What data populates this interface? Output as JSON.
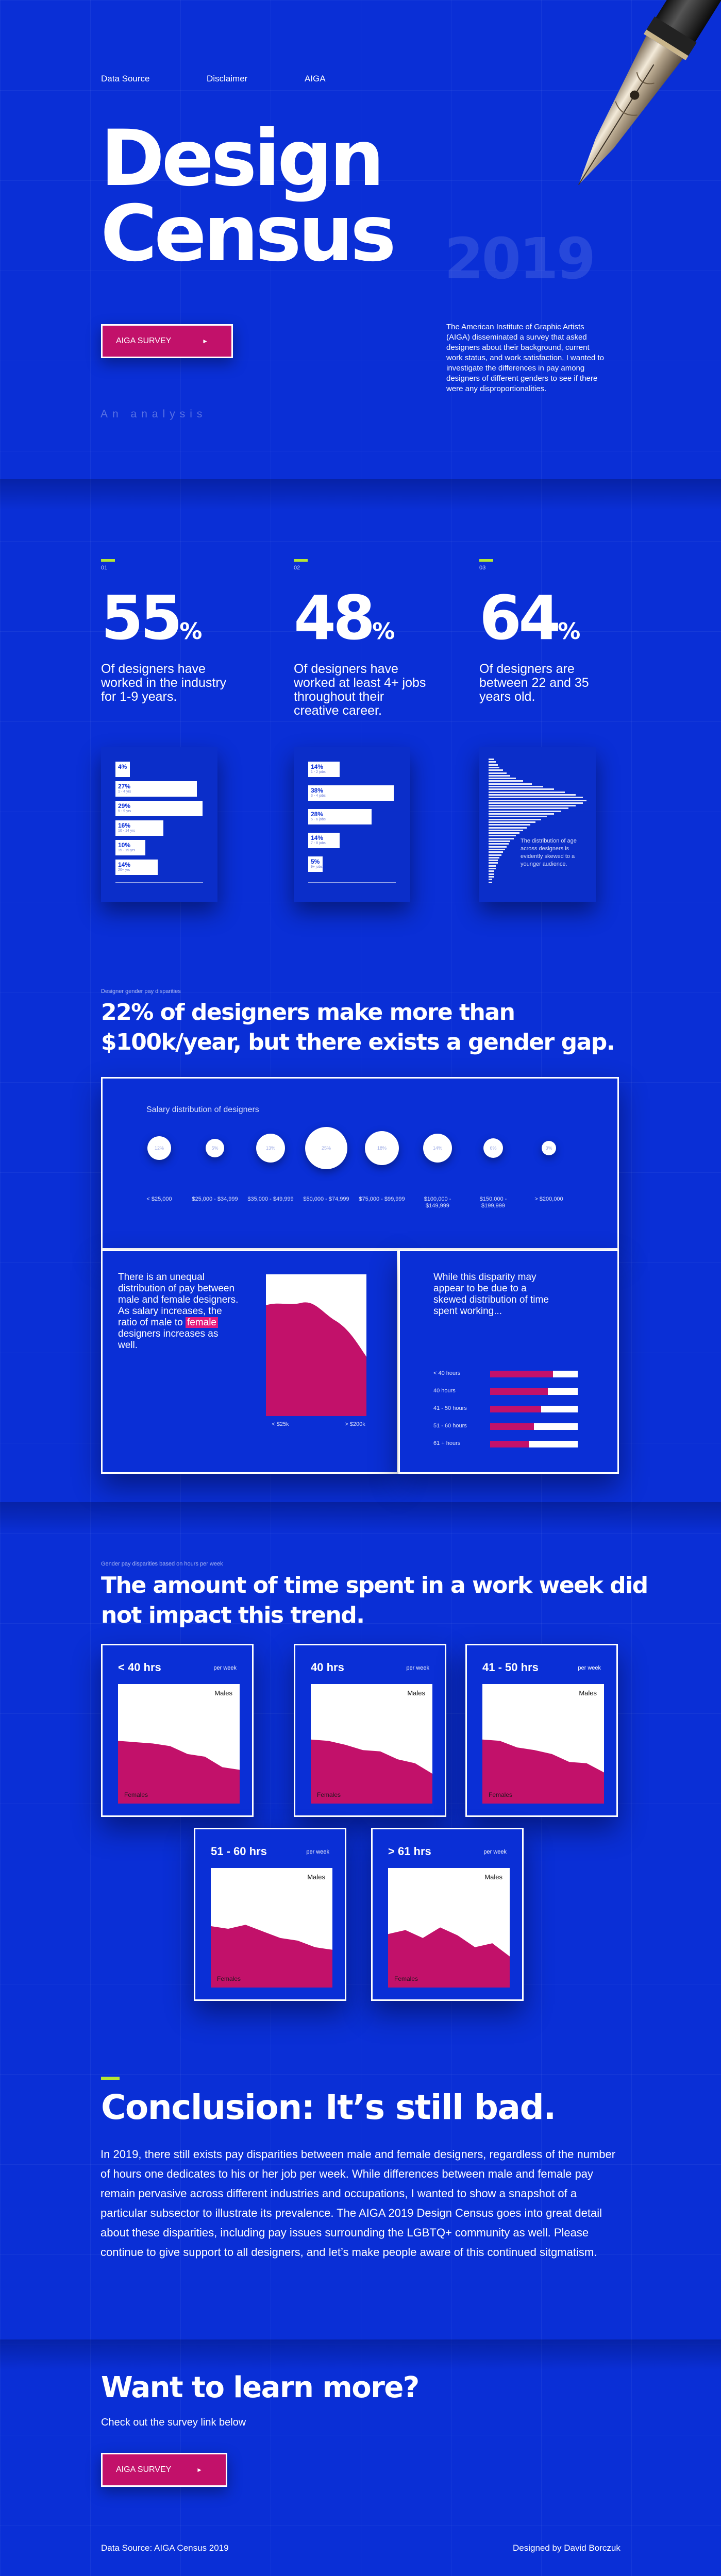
{
  "nav": {
    "items": [
      "Data Source",
      "Disclaimer",
      "AIGA"
    ]
  },
  "hero": {
    "title_line1": "Design",
    "title_line2": "Census",
    "year": "2019",
    "button_label": "AIGA SURVEY",
    "button_arrow": "►",
    "description": "The American Institute of Graphic Artists (AIGA) disseminated a survey that asked designers about their background, current work status, and work satisfaction. I wanted to investigate the differences in pay among designers of different genders to see if there were any disproportionalities.",
    "tagline": "An analysis"
  },
  "stats": [
    {
      "num": "01",
      "value": "55",
      "unit": "%",
      "desc": "Of designers have worked in the industry for 1-9 years.",
      "bars": [
        {
          "label": "4%",
          "sub": "",
          "value": 4
        },
        {
          "label": "27%",
          "sub": "1 - 4 yrs",
          "value": 27
        },
        {
          "label": "29%",
          "sub": "5 - 9 yrs",
          "value": 29
        },
        {
          "label": "16%",
          "sub": "10 - 14 yrs",
          "value": 16
        },
        {
          "label": "10%",
          "sub": "15 - 19 yrs",
          "value": 10
        },
        {
          "label": "14%",
          "sub": "20+ yrs",
          "value": 14
        }
      ]
    },
    {
      "num": "02",
      "value": "48",
      "unit": "%",
      "desc": "Of designers have worked at least 4+ jobs throughout their creative career.",
      "bars": [
        {
          "label": "14%",
          "sub": "1 - 2 jobs",
          "value": 14
        },
        {
          "label": "38%",
          "sub": "3 - 4 jobs",
          "value": 38
        },
        {
          "label": "28%",
          "sub": "5 - 6 jobs",
          "value": 28
        },
        {
          "label": "14%",
          "sub": "7 - 8 jobs",
          "value": 14
        },
        {
          "label": "5%",
          "sub": "9+ jobs",
          "value": 5
        }
      ]
    },
    {
      "num": "03",
      "value": "64",
      "unit": "%",
      "desc": "Of designers are between 22 and 35 years old.",
      "dist_text": "The distribution of age across designers is evidently skewed to a younger audience.",
      "dist_values": [
        3,
        4,
        5,
        6,
        8,
        10,
        12,
        15,
        19,
        24,
        30,
        36,
        42,
        48,
        52,
        54,
        52,
        48,
        44,
        40,
        36,
        32,
        29,
        26,
        23,
        21,
        19,
        17,
        15,
        14,
        12,
        11,
        10,
        9,
        8,
        7,
        6,
        5,
        5,
        4,
        4,
        3,
        3,
        3,
        2,
        2
      ]
    }
  ],
  "salary_section": {
    "label": "Designer gender pay disparities",
    "title_line1": "22% of designers make more than",
    "title_line2": "$100k/year, but there exists a gender gap.",
    "panel_title": "Salary distribution of designers",
    "bubbles": [
      {
        "pct": "12%",
        "label": "< $25,000",
        "size": 46
      },
      {
        "pct": "5%",
        "label": "$25,000 - $34,999",
        "size": 36
      },
      {
        "pct": "13%",
        "label": "$35,000 - $49,999",
        "size": 56
      },
      {
        "pct": "25%",
        "label": "$50,000 - $74,999",
        "size": 82
      },
      {
        "pct": "18%",
        "label": "$75,000 - $99,999",
        "size": 66
      },
      {
        "pct": "14%",
        "label": "$100,000 - $149,999",
        "size": 56
      },
      {
        "pct": "6%",
        "label": "$150,000 - $199,999",
        "size": 38
      },
      {
        "pct": "3%",
        "label": "> $200,000",
        "size": 28
      }
    ],
    "left_text_pre": "There is an unequal distribution of pay between male and female designers. As salary increases, the ratio of male to ",
    "left_text_hl": "female",
    "left_text_post": " designers increases as well.",
    "left_axis_min": "< $25k",
    "left_axis_max": "> $200k",
    "right_text": "While this disparity may appear to be due to a skewed distribution of time spent working...",
    "hours_rows": [
      {
        "label": "< 40 hours",
        "female": 0.72
      },
      {
        "label": "40 hours",
        "female": 0.66
      },
      {
        "label": "41 - 50 hours",
        "female": 0.58
      },
      {
        "label": "51 - 60 hours",
        "female": 0.5
      },
      {
        "label": "61 + hours",
        "female": 0.44
      }
    ]
  },
  "hours_section": {
    "label": "Gender pay disparities based on hours per week",
    "title_line1": "The amount of time spent in a work week did",
    "title_line2": "not impact this trend.",
    "per_week": "per week",
    "males": "Males",
    "females": "Females",
    "cards": [
      {
        "title": "< 40 hrs",
        "female_share": [
          0.64,
          0.62,
          0.6,
          0.56,
          0.44,
          0.4,
          0.24,
          0.2
        ]
      },
      {
        "title": "40 hrs",
        "female_share": [
          0.66,
          0.64,
          0.58,
          0.5,
          0.48,
          0.36,
          0.3,
          0.14
        ]
      },
      {
        "title": "41 - 50 hrs",
        "female_share": [
          0.66,
          0.64,
          0.54,
          0.5,
          0.44,
          0.32,
          0.3,
          0.16
        ]
      },
      {
        "title": "51 - 60 hrs",
        "female_share": [
          0.62,
          0.58,
          0.64,
          0.54,
          0.44,
          0.4,
          0.3,
          0.26
        ]
      },
      {
        "title": "> 61 hrs",
        "female_share": [
          0.5,
          0.56,
          0.44,
          0.6,
          0.48,
          0.3,
          0.36,
          0.16
        ]
      }
    ]
  },
  "conclusion": {
    "title": "Conclusion: It’s still bad.",
    "text": "In 2019, there still exists pay disparities between male and female designers, regardless of the number of hours one dedicates to his or her job per week. While differences between male and female pay remain pervasive across different industries and occupations, I wanted to show a snapshot of a particular subsector to illustrate its prevalence. The AIGA 2019 Design Census goes into great detail about these disparities, including pay issues surrounding the LGBTQ+ community as well. Please continue to give support to all designers, and let’s make people aware of this continued sitgmatism."
  },
  "learn_more": {
    "title": "Want to learn more?",
    "subtitle": "Check out the survey link below",
    "button_label": "AIGA SURVEY",
    "button_arrow": "►"
  },
  "footer": {
    "left": "Data Source: AIGA Census 2019",
    "right": "Designed by David Borczuk"
  },
  "colors": {
    "background": "#0a2fd6",
    "accent_pink": "#c2116a",
    "accent_lime": "#b6e632",
    "white": "#ffffff"
  }
}
